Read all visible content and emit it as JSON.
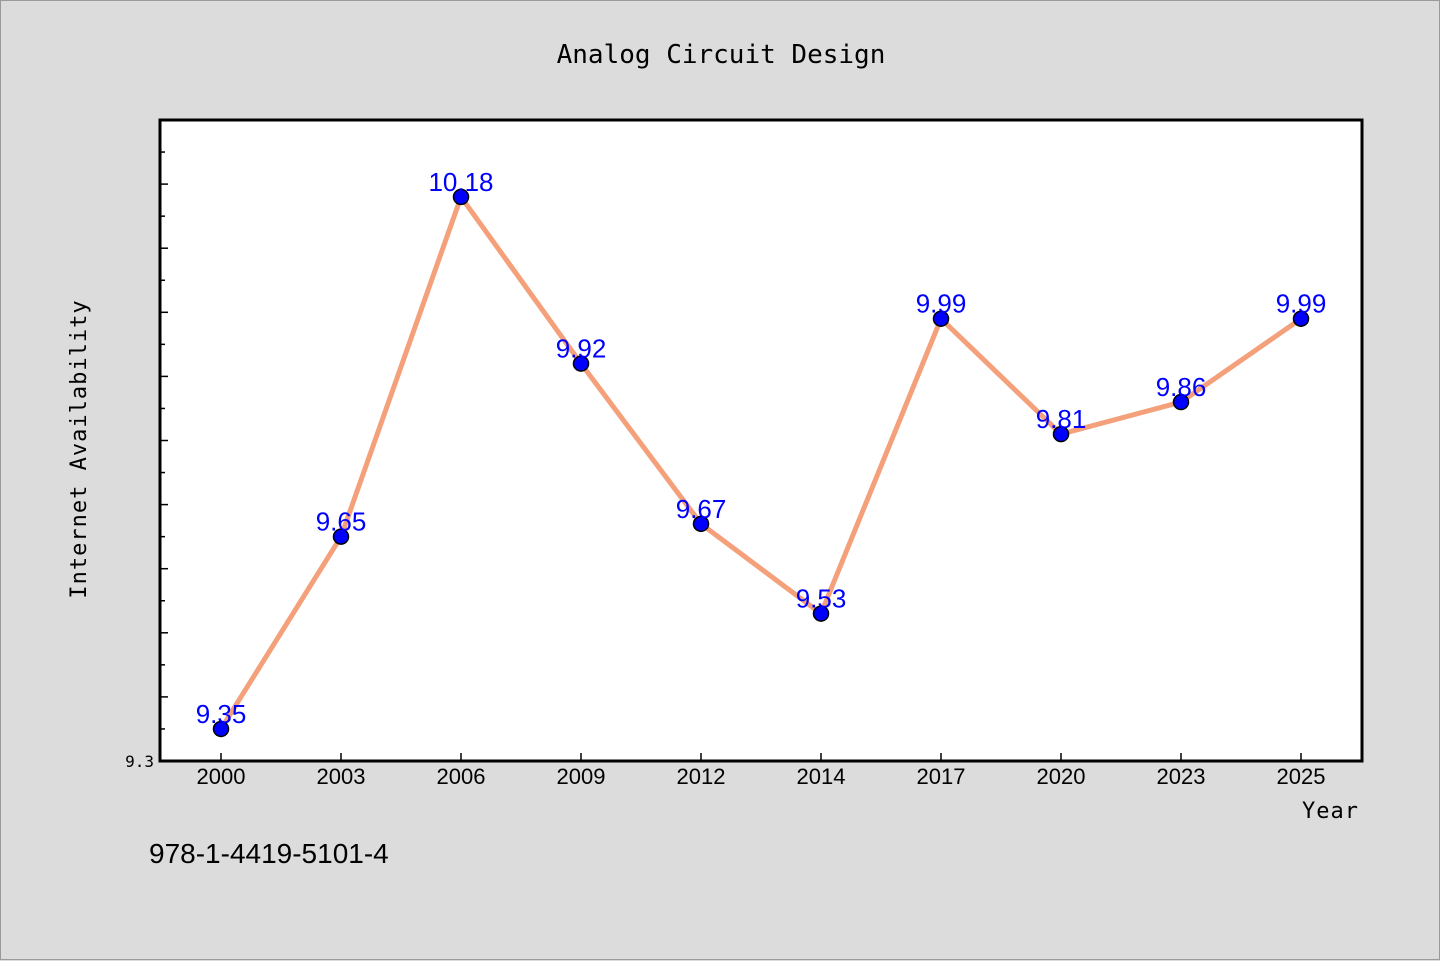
{
  "chart_data": {
    "type": "line",
    "title": "Analog Circuit Design",
    "xlabel": "Year",
    "ylabel": "Internet Availability",
    "categories": [
      "2000",
      "2003",
      "2006",
      "2009",
      "2012",
      "2014",
      "2017",
      "2020",
      "2023",
      "2025"
    ],
    "series": [
      {
        "values": [
          9.35,
          9.65,
          10.18,
          9.92,
          9.67,
          9.53,
          9.99,
          9.81,
          9.86,
          9.99
        ]
      }
    ],
    "data_labels": [
      "9.35",
      "9.65",
      "10.18",
      "9.92",
      "9.67",
      "9.53",
      "9.99",
      "9.81",
      "9.86",
      "9.99"
    ],
    "y_tick_labels": [
      "9.3"
    ],
    "ylim": [
      9.3,
      10.3
    ],
    "grid": false,
    "line_color": "#f4a07a",
    "marker_color": "#0000ff",
    "label_color": "#0000ff"
  },
  "footnote": "978-1-4419-5101-4"
}
